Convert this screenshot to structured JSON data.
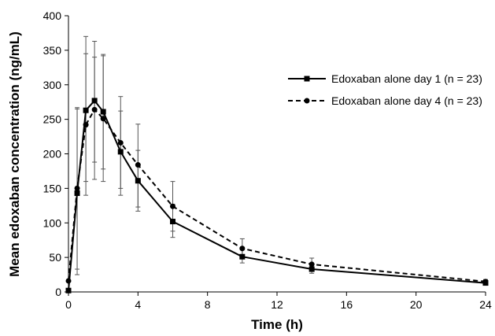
{
  "chart_data": {
    "type": "line",
    "xlabel": "Time (h)",
    "ylabel": "Mean edoxaban concentration (ng/mL)",
    "xlim": [
      0,
      24
    ],
    "ylim": [
      0,
      400
    ],
    "xticks": [
      0,
      4,
      8,
      12,
      16,
      20,
      24
    ],
    "yticks": [
      0,
      50,
      100,
      150,
      200,
      250,
      300,
      350,
      400
    ],
    "grid": false,
    "legend_position": "top-right",
    "series": [
      {
        "name": "Edoxaban alone day 1 (n = 23)",
        "line_style": "solid",
        "marker": "square",
        "color": "#000000",
        "x": [
          0,
          0.5,
          1,
          1.5,
          2,
          3,
          4,
          6,
          10,
          14,
          24
        ],
        "y": [
          2,
          143,
          263,
          277,
          261,
          203,
          161,
          102,
          51,
          33,
          13
        ],
        "error_upper": [
          2,
          265,
          345,
          363,
          344,
          262,
          205,
          127,
          61,
          40,
          17
        ],
        "error_lower": [
          2,
          25,
          160,
          163,
          178,
          150,
          123,
          79,
          42,
          27,
          10
        ]
      },
      {
        "name": "Edoxaban alone day 4 (n = 23)",
        "line_style": "dashed",
        "marker": "circle",
        "color": "#000000",
        "x": [
          0,
          0.5,
          1,
          1.5,
          2,
          3,
          4,
          6,
          10,
          14,
          24
        ],
        "y": [
          16,
          150,
          242,
          264,
          251,
          216,
          184,
          124,
          63,
          40,
          15
        ],
        "error_upper": [
          16,
          267,
          370,
          340,
          342,
          283,
          243,
          160,
          77,
          49,
          18
        ],
        "error_lower": [
          16,
          33,
          140,
          188,
          160,
          140,
          117,
          88,
          49,
          31,
          12
        ]
      }
    ]
  }
}
